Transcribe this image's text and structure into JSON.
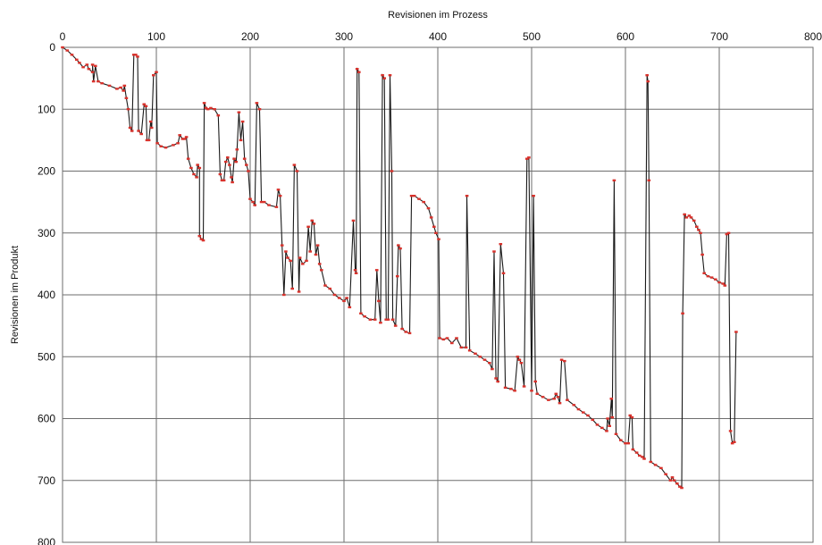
{
  "chart_data": {
    "type": "line",
    "title": "",
    "xlabel": "Revisionen im Prozess",
    "ylabel": "Revisionen im Produkt",
    "xlim": [
      0,
      800
    ],
    "ylim": [
      0,
      800
    ],
    "y_inverted": true,
    "x_axis_position": "top",
    "x_ticks": [
      0,
      100,
      200,
      300,
      400,
      500,
      600,
      700,
      800
    ],
    "y_ticks": [
      0,
      100,
      200,
      300,
      400,
      500,
      600,
      700,
      800
    ],
    "grid": true,
    "legend": "none",
    "line_color": "#1a1a1a",
    "marker_color": "#d8322c",
    "series": [
      {
        "values": [
          [
            0,
            0
          ],
          [
            5,
            5
          ],
          [
            10,
            12
          ],
          [
            15,
            20
          ],
          [
            18,
            25
          ],
          [
            22,
            32
          ],
          [
            26,
            28
          ],
          [
            28,
            35
          ],
          [
            32,
            40
          ],
          [
            32,
            28
          ],
          [
            33,
            55
          ],
          [
            35,
            30
          ],
          [
            38,
            55
          ],
          [
            42,
            58
          ],
          [
            50,
            62
          ],
          [
            58,
            67
          ],
          [
            62,
            65
          ],
          [
            65,
            70
          ],
          [
            66,
            62
          ],
          [
            68,
            82
          ],
          [
            70,
            100
          ],
          [
            72,
            130
          ],
          [
            74,
            135
          ],
          [
            76,
            12
          ],
          [
            78,
            12
          ],
          [
            80,
            15
          ],
          [
            81,
            135
          ],
          [
            84,
            140
          ],
          [
            87,
            92
          ],
          [
            89,
            95
          ],
          [
            90,
            150
          ],
          [
            92,
            150
          ],
          [
            94,
            120
          ],
          [
            95,
            130
          ],
          [
            97,
            45
          ],
          [
            100,
            40
          ],
          [
            101,
            155
          ],
          [
            105,
            160
          ],
          [
            110,
            162
          ],
          [
            118,
            158
          ],
          [
            123,
            155
          ],
          [
            125,
            142
          ],
          [
            128,
            148
          ],
          [
            130,
            148
          ],
          [
            132,
            145
          ],
          [
            134,
            180
          ],
          [
            137,
            195
          ],
          [
            140,
            205
          ],
          [
            143,
            210
          ],
          [
            144,
            190
          ],
          [
            146,
            195
          ],
          [
            146,
            305
          ],
          [
            148,
            310
          ],
          [
            150,
            312
          ],
          [
            151,
            90
          ],
          [
            153,
            98
          ],
          [
            155,
            100
          ],
          [
            158,
            98
          ],
          [
            162,
            100
          ],
          [
            166,
            110
          ],
          [
            168,
            205
          ],
          [
            170,
            215
          ],
          [
            172,
            215
          ],
          [
            174,
            185
          ],
          [
            176,
            178
          ],
          [
            178,
            190
          ],
          [
            180,
            210
          ],
          [
            181,
            218
          ],
          [
            183,
            180
          ],
          [
            185,
            185
          ],
          [
            186,
            165
          ],
          [
            188,
            105
          ],
          [
            190,
            150
          ],
          [
            192,
            120
          ],
          [
            194,
            180
          ],
          [
            196,
            190
          ],
          [
            198,
            200
          ],
          [
            200,
            245
          ],
          [
            203,
            250
          ],
          [
            205,
            255
          ],
          [
            207,
            90
          ],
          [
            210,
            100
          ],
          [
            212,
            250
          ],
          [
            215,
            250
          ],
          [
            220,
            255
          ],
          [
            228,
            258
          ],
          [
            230,
            230
          ],
          [
            232,
            240
          ],
          [
            234,
            320
          ],
          [
            236,
            400
          ],
          [
            238,
            330
          ],
          [
            240,
            340
          ],
          [
            243,
            345
          ],
          [
            245,
            390
          ],
          [
            247,
            190
          ],
          [
            250,
            200
          ],
          [
            252,
            395
          ],
          [
            253,
            340
          ],
          [
            256,
            350
          ],
          [
            260,
            345
          ],
          [
            262,
            290
          ],
          [
            264,
            330
          ],
          [
            266,
            280
          ],
          [
            268,
            285
          ],
          [
            270,
            335
          ],
          [
            272,
            320
          ],
          [
            274,
            350
          ],
          [
            276,
            360
          ],
          [
            280,
            385
          ],
          [
            285,
            390
          ],
          [
            290,
            400
          ],
          [
            295,
            405
          ],
          [
            300,
            410
          ],
          [
            303,
            405
          ],
          [
            306,
            420
          ],
          [
            310,
            280
          ],
          [
            312,
            360
          ],
          [
            313,
            365
          ],
          [
            314,
            35
          ],
          [
            316,
            40
          ],
          [
            318,
            430
          ],
          [
            322,
            435
          ],
          [
            328,
            440
          ],
          [
            333,
            440
          ],
          [
            335,
            360
          ],
          [
            337,
            410
          ],
          [
            339,
            445
          ],
          [
            341,
            45
          ],
          [
            343,
            50
          ],
          [
            345,
            440
          ],
          [
            347,
            440
          ],
          [
            349,
            45
          ],
          [
            351,
            200
          ],
          [
            352,
            440
          ],
          [
            355,
            450
          ],
          [
            357,
            370
          ],
          [
            358,
            320
          ],
          [
            360,
            325
          ],
          [
            362,
            455
          ],
          [
            366,
            460
          ],
          [
            370,
            462
          ],
          [
            372,
            240
          ],
          [
            375,
            240
          ],
          [
            380,
            245
          ],
          [
            385,
            250
          ],
          [
            390,
            260
          ],
          [
            393,
            275
          ],
          [
            396,
            290
          ],
          [
            398,
            300
          ],
          [
            401,
            310
          ],
          [
            402,
            470
          ],
          [
            406,
            472
          ],
          [
            410,
            470
          ],
          [
            415,
            478
          ],
          [
            420,
            470
          ],
          [
            425,
            485
          ],
          [
            430,
            485
          ],
          [
            431,
            240
          ],
          [
            434,
            490
          ],
          [
            440,
            495
          ],
          [
            445,
            500
          ],
          [
            450,
            505
          ],
          [
            455,
            510
          ],
          [
            458,
            520
          ],
          [
            460,
            330
          ],
          [
            462,
            535
          ],
          [
            464,
            540
          ],
          [
            467,
            318
          ],
          [
            470,
            365
          ],
          [
            472,
            550
          ],
          [
            478,
            552
          ],
          [
            482,
            555
          ],
          [
            485,
            500
          ],
          [
            487,
            505
          ],
          [
            489,
            510
          ],
          [
            492,
            548
          ],
          [
            495,
            180
          ],
          [
            497,
            178
          ],
          [
            500,
            555
          ],
          [
            502,
            240
          ],
          [
            504,
            540
          ],
          [
            506,
            560
          ],
          [
            512,
            565
          ],
          [
            518,
            570
          ],
          [
            524,
            568
          ],
          [
            526,
            560
          ],
          [
            528,
            565
          ],
          [
            530,
            575
          ],
          [
            532,
            505
          ],
          [
            535,
            507
          ],
          [
            538,
            570
          ],
          [
            545,
            578
          ],
          [
            550,
            585
          ],
          [
            555,
            590
          ],
          [
            560,
            595
          ],
          [
            565,
            602
          ],
          [
            570,
            610
          ],
          [
            575,
            615
          ],
          [
            580,
            620
          ],
          [
            581,
            600
          ],
          [
            583,
            612
          ],
          [
            585,
            568
          ],
          [
            586,
            598
          ],
          [
            588,
            215
          ],
          [
            590,
            625
          ],
          [
            595,
            635
          ],
          [
            600,
            640
          ],
          [
            603,
            640
          ],
          [
            605,
            595
          ],
          [
            607,
            598
          ],
          [
            608,
            650
          ],
          [
            612,
            655
          ],
          [
            615,
            660
          ],
          [
            618,
            662
          ],
          [
            620,
            665
          ],
          [
            623,
            45
          ],
          [
            624,
            55
          ],
          [
            625,
            215
          ],
          [
            627,
            670
          ],
          [
            632,
            675
          ],
          [
            638,
            680
          ],
          [
            643,
            690
          ],
          [
            648,
            700
          ],
          [
            650,
            695
          ],
          [
            652,
            700
          ],
          [
            655,
            705
          ],
          [
            658,
            710
          ],
          [
            660,
            712
          ],
          [
            661,
            430
          ],
          [
            663,
            270
          ],
          [
            665,
            275
          ],
          [
            668,
            272
          ],
          [
            670,
            275
          ],
          [
            673,
            280
          ],
          [
            676,
            290
          ],
          [
            678,
            295
          ],
          [
            680,
            300
          ],
          [
            682,
            335
          ],
          [
            684,
            365
          ],
          [
            688,
            370
          ],
          [
            692,
            372
          ],
          [
            696,
            375
          ],
          [
            700,
            380
          ],
          [
            704,
            382
          ],
          [
            706,
            385
          ],
          [
            708,
            302
          ],
          [
            710,
            300
          ],
          [
            712,
            620
          ],
          [
            714,
            640
          ],
          [
            716,
            638
          ],
          [
            718,
            460
          ]
        ]
      }
    ]
  }
}
